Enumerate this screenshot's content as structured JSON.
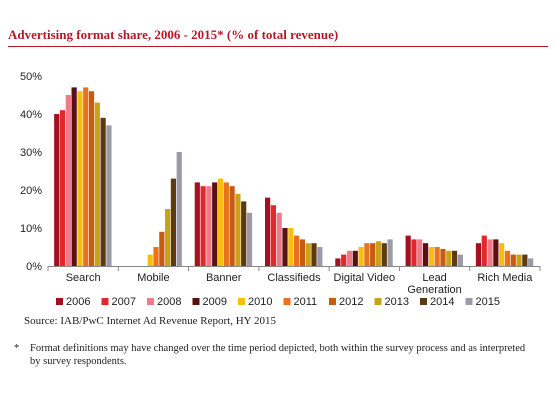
{
  "header": {
    "title": "Advertising format share, 2006 - 2015* (% of total revenue)"
  },
  "source": "Source: IAB/PwC Internet Ad Revenue Report, HY 2015",
  "footnote": {
    "mark": "*",
    "text": "Format definitions may have changed over the time period depicted, both within the survey process and as interpreted by survey respondents."
  },
  "chart_data": {
    "type": "bar",
    "title": "Advertising format share, 2006 - 2015* (% of total revenue)",
    "xlabel": "",
    "ylabel": "",
    "ylim": [
      0,
      50
    ],
    "yticks": [
      "0%",
      "10%",
      "20%",
      "30%",
      "40%",
      "50%"
    ],
    "grid": false,
    "legend": "bottom",
    "categories": [
      "Search",
      "Mobile",
      "Banner",
      "Classifieds",
      "Digital Video",
      "Lead Generation",
      "Rich Media"
    ],
    "category_lines": [
      [
        "Search"
      ],
      [
        "Mobile"
      ],
      [
        "Banner"
      ],
      [
        "Classifieds"
      ],
      [
        "Digital Video"
      ],
      [
        "Lead",
        "Generation"
      ],
      [
        "Rich Media"
      ]
    ],
    "series": [
      {
        "name": "2006",
        "color": "#a3101e",
        "values": [
          40,
          0,
          22,
          18,
          2,
          8,
          6
        ]
      },
      {
        "name": "2007",
        "color": "#e0282d",
        "values": [
          41,
          0,
          21,
          16,
          3,
          7,
          8
        ]
      },
      {
        "name": "2008",
        "color": "#ee7a8a",
        "values": [
          45,
          0,
          21,
          14,
          4,
          7,
          7
        ]
      },
      {
        "name": "2009",
        "color": "#5a1010",
        "values": [
          47,
          0,
          22,
          10,
          4,
          6,
          7
        ]
      },
      {
        "name": "2010",
        "color": "#f7bd10",
        "values": [
          46,
          3,
          23,
          10,
          5,
          5,
          6
        ]
      },
      {
        "name": "2011",
        "color": "#e8731c",
        "values": [
          47,
          5,
          22,
          8,
          6,
          5,
          4
        ]
      },
      {
        "name": "2012",
        "color": "#c85a12",
        "values": [
          46,
          9,
          21,
          7,
          6,
          4.5,
          3
        ]
      },
      {
        "name": "2013",
        "color": "#c9a21a",
        "values": [
          43,
          15,
          19,
          6,
          6.5,
          4,
          3
        ]
      },
      {
        "name": "2014",
        "color": "#5e3a12",
        "values": [
          39,
          23,
          17,
          6,
          6,
          4,
          3
        ]
      },
      {
        "name": "2015",
        "color": "#9a9aa8",
        "values": [
          37,
          30,
          14,
          5,
          7,
          3,
          2
        ]
      }
    ]
  }
}
